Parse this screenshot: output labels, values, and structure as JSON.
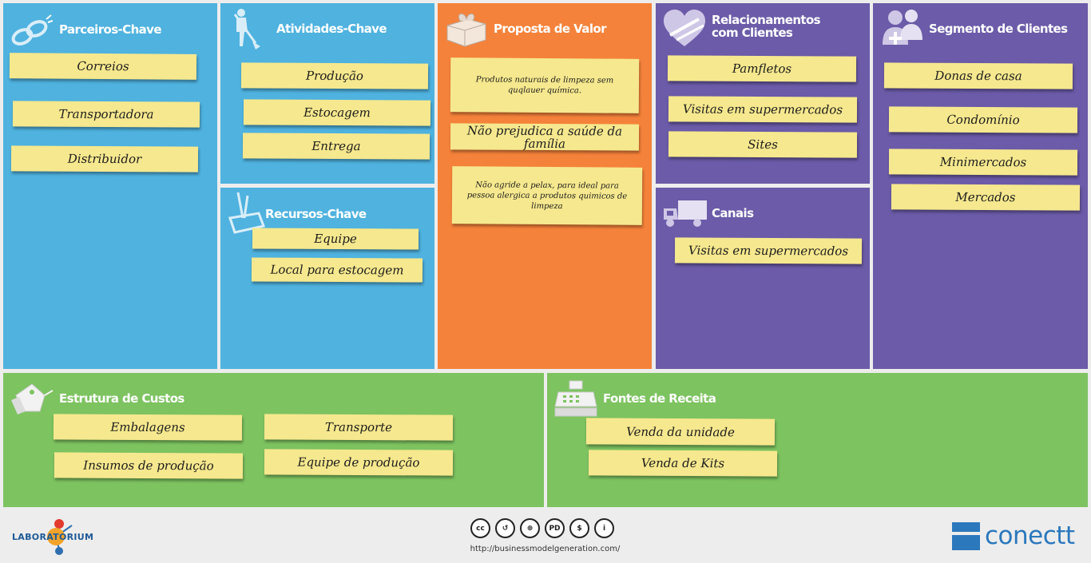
{
  "blocks": {
    "parceiros": {
      "title": "Parceiros-Chave",
      "icon": "chain-link-icon",
      "notes": [
        "Correios",
        "Transportadora",
        "Distribuidor"
      ]
    },
    "atividades": {
      "title": "Atividades-Chave",
      "icon": "worker-shovel-icon",
      "notes": [
        "Produção",
        "Estocagem",
        "Entrega"
      ]
    },
    "recursos": {
      "title": "Recursos-Chave",
      "icon": "toolbox-icon",
      "notes": [
        "Equipe",
        "Local para estocagem"
      ]
    },
    "proposta": {
      "title": "Proposta de Valor",
      "icon": "gift-box-icon",
      "notes": [
        "Produtos naturais de limpeza sem quqlauer química.",
        "Não prejudica a saúde da família",
        "Não agride a pelax, para ideal para pessoa alergica a produtos quimicos de limpeza"
      ]
    },
    "relacionamentos": {
      "title_line1": "Relacionamentos",
      "title_line2": "com Clientes",
      "icon": "heart-icon",
      "notes": [
        "Pamfletos",
        "Visitas em supermercados",
        "Sites"
      ]
    },
    "canais": {
      "title": "Canais",
      "icon": "truck-icon",
      "notes": [
        "Visitas em supermercados"
      ]
    },
    "segmento": {
      "title": "Segmento de Clientes",
      "icon": "people-icon",
      "notes": [
        "Donas de casa",
        "Condomínio",
        "Minimercados",
        "Mercados"
      ]
    },
    "custos": {
      "title": "Estrutura de Custos",
      "icon": "price-tag-icon",
      "notes": [
        "Embalagens",
        "Transporte",
        "Insumos de produção",
        "Equipe de produção"
      ]
    },
    "receita": {
      "title": "Fontes de Receita",
      "icon": "cash-register-icon",
      "notes": [
        "Venda da unidade",
        "Venda de Kits"
      ]
    }
  },
  "colors": {
    "blue": "#4fb2df",
    "orange": "#f5823a",
    "purple": "#6b5ba8",
    "green": "#7dc360",
    "note": "#f6e88e"
  },
  "footer": {
    "lab_logo_text": "LABORATORIUM",
    "license_icons": [
      "cc-icon",
      "by-icon",
      "web-icon",
      "pd-icon",
      "nc-icon",
      "person-icon"
    ],
    "license_labels": [
      "cc",
      "↺",
      "⊕",
      "PD",
      "$",
      "i"
    ],
    "url": "http://businessmodelgeneration.com/",
    "brand": "conectt"
  }
}
